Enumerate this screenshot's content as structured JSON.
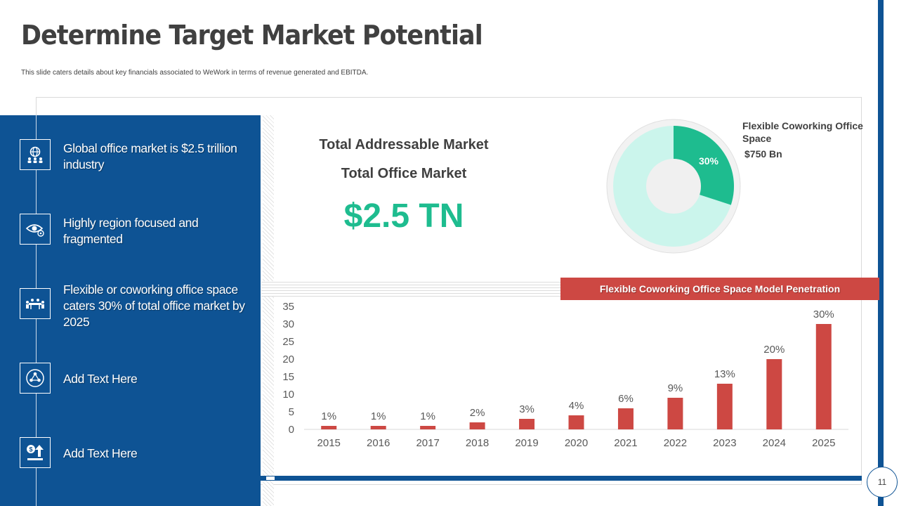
{
  "header": {
    "title": "Determine Target Market Potential",
    "subtitle": "This slide caters details about key financials associated to WeWork in terms of revenue generated and EBITDA."
  },
  "panel": {
    "items": [
      {
        "icon": "globe-people-icon",
        "label": "Global office market is $2.5 trillion industry"
      },
      {
        "icon": "eye-gear-icon",
        "label": "Highly region focused and fragmented"
      },
      {
        "icon": "meeting-table-icon",
        "label": "Flexible or coworking office space caters 30% of total office market by 2025"
      },
      {
        "icon": "network-circle-icon",
        "label": "Add Text Here"
      },
      {
        "icon": "money-growth-icon",
        "label": "Add Text Here"
      }
    ]
  },
  "market": {
    "heading1": "Total Addressable Market",
    "heading2": "Total Office Market",
    "value": "$2.5 TN"
  },
  "donut": {
    "label": "Flexible Coworking Office Space",
    "amount": "$750 Bn",
    "percent_label": "30%",
    "share": 0.3
  },
  "colors": {
    "brand_blue": "#0e5394",
    "accent_red": "#cd4843",
    "teal": "#1ebc8f",
    "teal_light": "#cbf5ec"
  },
  "page_number": "11",
  "chart_data": {
    "type": "bar",
    "title": "Flexible Coworking Office Space Model Penetration",
    "categories": [
      "2015",
      "2016",
      "2017",
      "2018",
      "2019",
      "2020",
      "2021",
      "2022",
      "2023",
      "2024",
      "2025"
    ],
    "values": [
      1,
      1,
      1,
      2,
      3,
      4,
      6,
      9,
      13,
      20,
      30
    ],
    "data_labels": [
      "1%",
      "1%",
      "1%",
      "2%",
      "3%",
      "4%",
      "6%",
      "9%",
      "13%",
      "20%",
      "30%"
    ],
    "yticks": [
      0,
      5,
      10,
      15,
      20,
      25,
      30,
      35
    ],
    "ylim": [
      0,
      35
    ],
    "grid": false,
    "bar_color": "#cd4843"
  }
}
